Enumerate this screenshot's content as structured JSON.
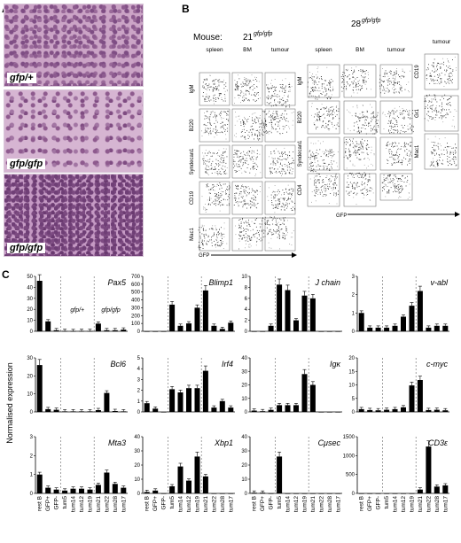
{
  "panel_a": {
    "letter": "A",
    "histology": [
      {
        "label": "gfp/+"
      },
      {
        "label": "gfp/gfp"
      },
      {
        "label": "gfp/gfp"
      }
    ]
  },
  "panel_b": {
    "letter": "B",
    "mouse_label": "Mouse:",
    "mouse1": "21",
    "mouse1_sup": "gfp/gfp",
    "mouse2": "28",
    "mouse2_sup": "gfp/gfp",
    "columns_m1": [
      "spleen",
      "BM",
      "tumour"
    ],
    "columns_m2": [
      "spleen",
      "BM",
      "tumour"
    ],
    "column_extra": "tumour",
    "rows_m1": [
      "IgM",
      "B220",
      "Syndecan1",
      "CD19",
      "Mac1"
    ],
    "rows_m2": [
      "IgM",
      "B220",
      "Syndecan1",
      "CD4"
    ],
    "rows_extra": [
      "CD19",
      "Gr1",
      "Mac1"
    ],
    "gfp_label_1": "GFP",
    "gfp_label_2": "GFP"
  },
  "panel_c": {
    "letter": "C",
    "ylabel": "Normalised expression",
    "group_labels": [
      "gfp/+",
      "gfp/gfp"
    ],
    "x_labels": [
      "rest B",
      "GFP+",
      "GFP-",
      "tum5",
      "tum14",
      "tum12",
      "tum19",
      "tum21",
      "tum22",
      "tum28",
      "tum17"
    ],
    "x_labels_col2": [
      "rest B",
      "GFP+",
      "GFP-",
      "tum5",
      "tum14",
      "tum12",
      "tum19",
      "tum21",
      "tum22",
      "tum28",
      "tum17"
    ]
  },
  "chart_data": [
    {
      "type": "bar",
      "title": "Pax5",
      "ylim": [
        0,
        50
      ],
      "yticks": [
        0,
        10,
        20,
        30,
        40,
        50
      ],
      "values": [
        46,
        9,
        1,
        0.3,
        0.2,
        0.3,
        0.3,
        7,
        1,
        1,
        1.5
      ]
    },
    {
      "type": "bar",
      "title": "Blimp1",
      "ylim": [
        0,
        700
      ],
      "yticks": [
        0,
        100,
        200,
        300,
        400,
        500,
        600,
        700
      ],
      "values": [
        0,
        0,
        0,
        340,
        70,
        100,
        300,
        520,
        70,
        30,
        110
      ]
    },
    {
      "type": "bar",
      "title": "J chain",
      "ylim": [
        0,
        10
      ],
      "yticks": [
        0,
        2,
        4,
        6,
        8,
        10
      ],
      "values": [
        0,
        0,
        1,
        8.5,
        7.5,
        2,
        6.5,
        6,
        0,
        0,
        0
      ]
    },
    {
      "type": "bar",
      "title": "v-abl",
      "ylim": [
        0,
        3
      ],
      "yticks": [
        0,
        1,
        2,
        3
      ],
      "values": [
        1,
        0.2,
        0.2,
        0.2,
        0.3,
        0.8,
        1.4,
        2.2,
        0.2,
        0.3,
        0.3
      ]
    },
    {
      "type": "bar",
      "title": "Bcl6",
      "ylim": [
        0,
        30
      ],
      "yticks": [
        0,
        10,
        20,
        30
      ],
      "values": [
        26,
        1.5,
        1.2,
        0.3,
        0.3,
        0.3,
        0.3,
        1,
        10.5,
        0.5,
        0.3
      ]
    },
    {
      "type": "bar",
      "title": "Irf4",
      "ylim": [
        0,
        5
      ],
      "yticks": [
        0,
        1,
        2,
        3,
        4,
        5
      ],
      "values": [
        0.8,
        0.3,
        0,
        2.1,
        1.8,
        2.2,
        2.2,
        3.8,
        0.4,
        1,
        0.4
      ]
    },
    {
      "type": "bar",
      "title": "Igκ",
      "ylim": [
        0,
        40
      ],
      "yticks": [
        0,
        10,
        20,
        30,
        40
      ],
      "values": [
        1,
        0.5,
        1.5,
        5,
        5,
        5,
        28,
        20,
        0,
        0,
        0
      ]
    },
    {
      "type": "bar",
      "title": "c-myc",
      "ylim": [
        0,
        20
      ],
      "yticks": [
        0,
        5,
        10,
        15,
        20
      ],
      "values": [
        1,
        0.7,
        0.6,
        0.8,
        1,
        1.7,
        9.8,
        11.8,
        0.7,
        0.8,
        0.6
      ]
    },
    {
      "type": "bar",
      "title": "Mta3",
      "ylim": [
        0,
        3
      ],
      "yticks": [
        0,
        1,
        2,
        3
      ],
      "values": [
        1,
        0.3,
        0.2,
        0.15,
        0.25,
        0.25,
        0.2,
        0.45,
        1.1,
        0.5,
        0.3
      ]
    },
    {
      "type": "bar",
      "title": "Xbp1",
      "ylim": [
        0,
        40
      ],
      "yticks": [
        0,
        10,
        20,
        30,
        40
      ],
      "values": [
        1,
        2,
        0,
        5,
        19,
        9,
        26,
        12,
        0,
        0,
        0
      ]
    },
    {
      "type": "bar",
      "title": "Cμsec",
      "ylim": [
        0,
        40
      ],
      "yticks": [
        0,
        10,
        20,
        30,
        40
      ],
      "values": [
        0.5,
        0.5,
        0,
        26,
        0,
        0,
        0,
        0,
        0,
        0,
        0
      ]
    },
    {
      "type": "bar",
      "title": "CD3ε",
      "ylim": [
        0,
        1500
      ],
      "yticks": [
        0,
        500,
        1000,
        1500
      ],
      "values": [
        0,
        0,
        0,
        0,
        0,
        0,
        0,
        100,
        1240,
        180,
        210
      ]
    }
  ]
}
